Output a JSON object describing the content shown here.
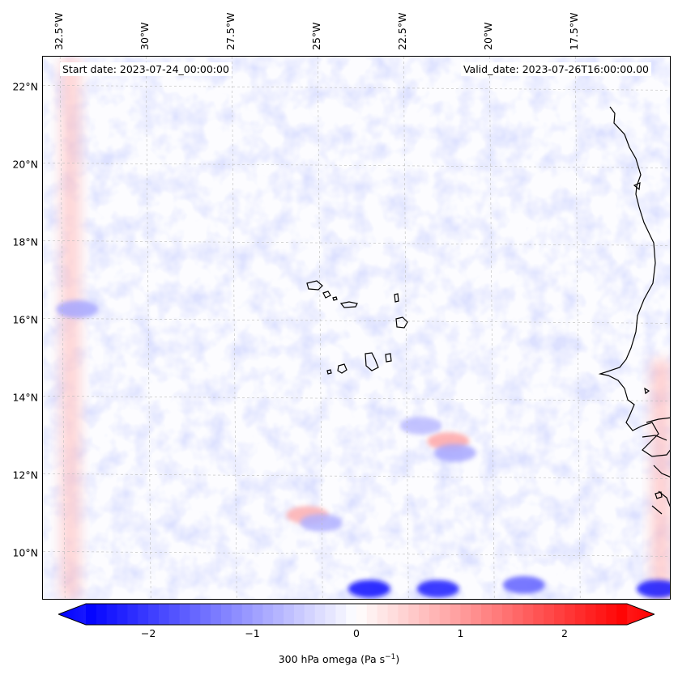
{
  "map": {
    "start_label": "Start date: 2023-07-24_00:00:00",
    "valid_label": "Valid_date: 2023-07-26T16:00:00.00",
    "extent": {
      "lon_west": -33.0,
      "lon_east": -14.7,
      "lat_south": 8.8,
      "lat_north": 22.8
    },
    "lon_ticks": [
      {
        "label": "32.5°W",
        "value": -32.5
      },
      {
        "label": "30°W",
        "value": -30.0
      },
      {
        "label": "27.5°W",
        "value": -27.5
      },
      {
        "label": "25°W",
        "value": -25.0
      },
      {
        "label": "22.5°W",
        "value": -22.5
      },
      {
        "label": "20°W",
        "value": -20.0
      },
      {
        "label": "17.5°W",
        "value": -17.5
      }
    ],
    "lat_ticks": [
      {
        "label": "22°N",
        "value": 22
      },
      {
        "label": "20°N",
        "value": 20
      },
      {
        "label": "18°N",
        "value": 18
      },
      {
        "label": "16°N",
        "value": 16
      },
      {
        "label": "14°N",
        "value": 14
      },
      {
        "label": "12°N",
        "value": 12
      },
      {
        "label": "10°N",
        "value": 10
      }
    ],
    "gridlines": true,
    "coastline_color": "#000000"
  },
  "colorbar": {
    "label_main": "300 hPa omega (Pa s",
    "label_exp": "−1",
    "label_end": ")",
    "vmin": -2.6,
    "vmax": 2.6,
    "ticks": [
      {
        "label": "−2",
        "value": -2
      },
      {
        "label": "−1",
        "value": -1
      },
      {
        "label": "0",
        "value": 0
      },
      {
        "label": "1",
        "value": 1
      },
      {
        "label": "2",
        "value": 2
      }
    ],
    "colormap": "bwr",
    "low_color": "#0000ff",
    "mid_color": "#ffffff",
    "high_color": "#ff0000"
  },
  "field_features": [
    {
      "kind": "band",
      "lon": -32.2,
      "lat_min": 8.8,
      "lat_max": 22.8,
      "value": 0.7
    },
    {
      "kind": "band",
      "lon": -15.0,
      "lat_min": 8.8,
      "lat_max": 15.0,
      "value": 0.8
    },
    {
      "kind": "blob",
      "lon": -32.0,
      "lat": 16.3,
      "value": -0.9
    },
    {
      "kind": "blob",
      "lon": -23.5,
      "lat": 9.1,
      "value": -2.5
    },
    {
      "kind": "blob",
      "lon": -21.5,
      "lat": 9.1,
      "value": -2.3
    },
    {
      "kind": "blob",
      "lon": -19.0,
      "lat": 9.2,
      "value": -1.6
    },
    {
      "kind": "blob",
      "lon": -15.1,
      "lat": 9.1,
      "value": -2.4
    },
    {
      "kind": "blob",
      "lon": -21.2,
      "lat": 12.9,
      "value": 0.9
    },
    {
      "kind": "blob",
      "lon": -21.0,
      "lat": 12.6,
      "value": -0.9
    },
    {
      "kind": "blob",
      "lon": -25.3,
      "lat": 11.0,
      "value": 0.8
    },
    {
      "kind": "blob",
      "lon": -24.9,
      "lat": 10.8,
      "value": -0.8
    },
    {
      "kind": "blob",
      "lon": -22.0,
      "lat": 13.3,
      "value": -0.7
    }
  ]
}
